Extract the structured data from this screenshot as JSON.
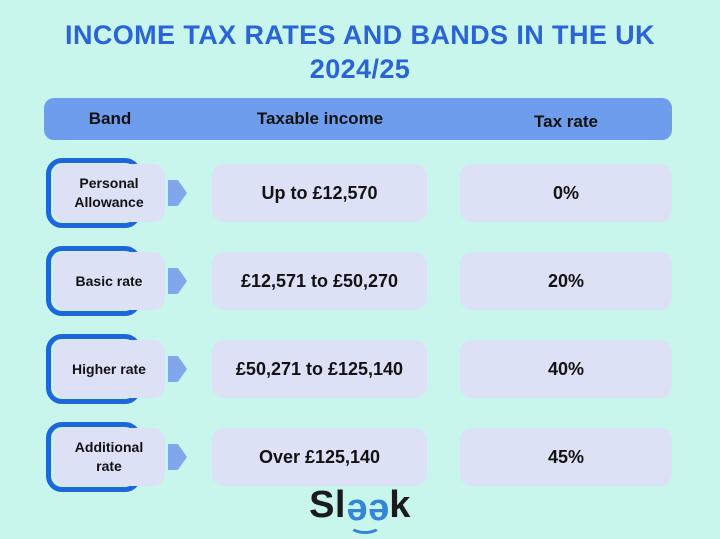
{
  "title": {
    "line1": "INCOME TAX RATES AND BANDS IN THE UK",
    "line2": "2024/25"
  },
  "table": {
    "headers": {
      "band": "Band",
      "income": "Taxable income",
      "rate": "Tax rate"
    },
    "rows": [
      {
        "band": "Personal Allowance",
        "income": "Up to £12,570",
        "rate": "0%"
      },
      {
        "band": "Basic rate",
        "income": "£12,571 to £50,270",
        "rate": "20%"
      },
      {
        "band": "Higher rate",
        "income": "£50,271 to £125,140",
        "rate": "40%"
      },
      {
        "band": "Additional rate",
        "income": "Over £125,140",
        "rate": "45%"
      }
    ]
  },
  "logo": {
    "prefix": "Sl",
    "eyes": "ee",
    "suffix": "k"
  },
  "icons": {
    "row_marker": "arrow-right",
    "logo_eyes": "rotated-e-eyes",
    "logo_smile": "smile-arc"
  },
  "colors": {
    "background": "#c8f6ec",
    "title_text": "#2b63d9",
    "header_bar": "#6f9ded",
    "cell_fill": "#dce1f6",
    "band_outline": "#1d66db",
    "arrow": "#7fa7ea",
    "body_text": "#121212",
    "logo_dark": "#1b1b1d",
    "logo_blue": "#3585d6"
  },
  "chart_data": {
    "type": "table",
    "title": "INCOME TAX RATES AND BANDS IN THE UK 2024/25",
    "columns": [
      "Band",
      "Taxable income",
      "Tax rate"
    ],
    "rows": [
      [
        "Personal Allowance",
        "Up to £12,570",
        "0%"
      ],
      [
        "Basic rate",
        "£12,571 to £50,270",
        "20%"
      ],
      [
        "Higher rate",
        "£50,271 to £125,140",
        "40%"
      ],
      [
        "Additional rate",
        "Over £125,140",
        "45%"
      ]
    ],
    "tax_rate_values_percent": [
      0,
      20,
      40,
      45
    ],
    "band_thresholds_gbp": [
      12570,
      50270,
      125140
    ],
    "source_branding": "Sleek"
  }
}
